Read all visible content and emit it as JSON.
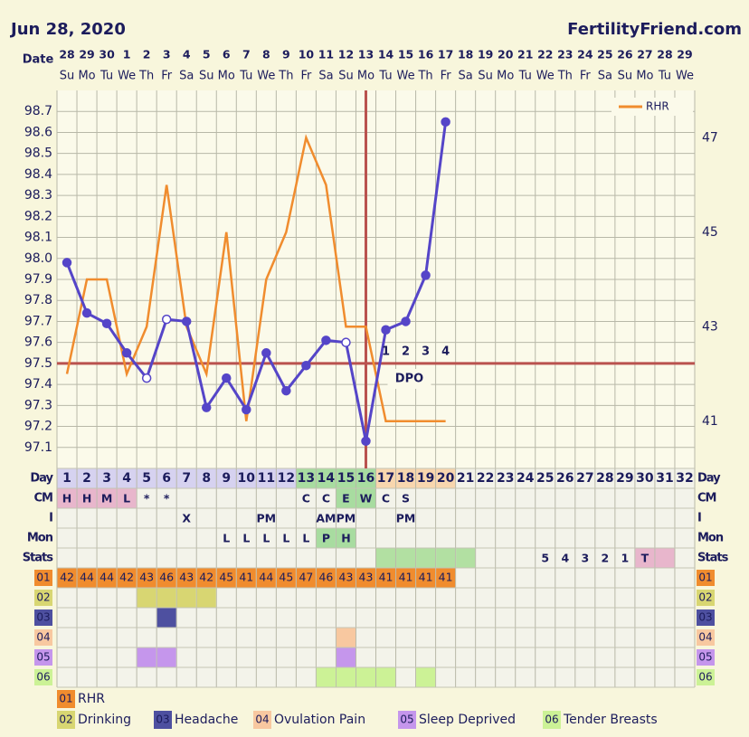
{
  "header": {
    "date": "Jun 28, 2020",
    "site": "FertilityFriend.com"
  },
  "chart_data": {
    "type": "line",
    "x_label": "Date",
    "categories": [
      "1",
      "2",
      "3",
      "4",
      "5",
      "6",
      "7",
      "8",
      "9",
      "10",
      "11",
      "12",
      "13",
      "14",
      "15",
      "16",
      "17",
      "18",
      "19",
      "20",
      "21",
      "22",
      "23",
      "24",
      "25",
      "26",
      "27",
      "28",
      "29",
      "30",
      "31",
      "32"
    ],
    "dates": [
      "28",
      "29",
      "30",
      "1",
      "2",
      "3",
      "4",
      "5",
      "6",
      "7",
      "8",
      "9",
      "10",
      "11",
      "12",
      "13",
      "14",
      "15",
      "16",
      "17",
      "18",
      "19",
      "20",
      "21",
      "22",
      "23",
      "24",
      "25",
      "26",
      "27",
      "28",
      "29"
    ],
    "weekdays": [
      "Su",
      "Mo",
      "Tu",
      "We",
      "Th",
      "Fr",
      "Sa",
      "Su",
      "Mo",
      "Tu",
      "We",
      "Th",
      "Fr",
      "Sa",
      "Su",
      "Mo",
      "Tu",
      "We",
      "Th",
      "Fr",
      "Sa",
      "Su",
      "Mo",
      "Tu",
      "We",
      "Th",
      "Fr",
      "Sa",
      "Su",
      "Mo",
      "Tu",
      "We"
    ],
    "ylim": [
      97.0,
      98.8
    ],
    "yticks": [
      97.1,
      97.2,
      97.3,
      97.4,
      97.5,
      97.6,
      97.7,
      97.8,
      97.9,
      {
        "value": 98,
        "label": "98.0"
      },
      98.1,
      98.2,
      98.3,
      98.4,
      98.5,
      98.6,
      98.7
    ],
    "y2lim": [
      40,
      48
    ],
    "y2ticks": [
      41,
      43,
      45,
      47
    ],
    "grid": true,
    "series": [
      {
        "color": "#5545c8",
        "hollow_points": [
          4,
          5,
          14
        ],
        "values": [
          97.98,
          97.74,
          97.69,
          97.55,
          97.43,
          97.71,
          97.7,
          97.29,
          97.43,
          97.28,
          97.55,
          97.37,
          97.49,
          97.61,
          97.6,
          97.13,
          97.66,
          97.7,
          97.92,
          98.65,
          null,
          null,
          null,
          null,
          null,
          null,
          null,
          null,
          null,
          null,
          null,
          null
        ]
      },
      {
        "name": "RHR",
        "color": "#f08c2e",
        "axis": "y2",
        "values": [
          42,
          44,
          44,
          42,
          43,
          46,
          43,
          42,
          45,
          41,
          44,
          45,
          47,
          46,
          43,
          43,
          41,
          41,
          41,
          41,
          null,
          null,
          null,
          null,
          null,
          null,
          null,
          null,
          null,
          null,
          null,
          null
        ]
      }
    ],
    "coverline": 97.5,
    "ovulation_day": 16,
    "line_color": "#b9524e",
    "dpo_labels": [
      null,
      null,
      null,
      null,
      null,
      null,
      null,
      null,
      null,
      null,
      null,
      null,
      null,
      null,
      null,
      null,
      "1",
      "2",
      "3",
      "4",
      null,
      null,
      null,
      null,
      null,
      null,
      null,
      null,
      null,
      null,
      null,
      null
    ],
    "dpo_text": "DPO"
  },
  "table": {
    "day_label": "Day",
    "day_fills": [
      {
        "from": 1,
        "to": 12,
        "color": "#d6d2f0"
      },
      {
        "from": 13,
        "to": 16,
        "color": "#a8dca0"
      },
      {
        "from": 17,
        "to": 20,
        "color": "#f8d6ae"
      }
    ],
    "rows": [
      {
        "label": "CM",
        "entries": [
          {
            "day": 1,
            "text": "H",
            "fill": "#e8b6cc"
          },
          {
            "day": 2,
            "text": "H",
            "fill": "#e8b6cc"
          },
          {
            "day": 3,
            "text": "M",
            "fill": "#e8b6cc"
          },
          {
            "day": 4,
            "text": "L",
            "fill": "#e8b6cc"
          },
          {
            "day": 5,
            "text": "*"
          },
          {
            "day": 6,
            "text": "*"
          },
          {
            "day": 13,
            "text": "C"
          },
          {
            "day": 14,
            "text": "C"
          },
          {
            "day": 15,
            "text": "E",
            "fill": "#a8dca0"
          },
          {
            "day": 16,
            "text": "W",
            "fill": "#a8dca0"
          },
          {
            "day": 17,
            "text": "C"
          },
          {
            "day": 18,
            "text": "S"
          }
        ]
      },
      {
        "label": "I",
        "entries": [
          {
            "day": 7,
            "text": "X"
          },
          {
            "day": 11,
            "text": "PM"
          },
          {
            "day": 14,
            "text": "AM"
          },
          {
            "day": 15,
            "text": "PM"
          },
          {
            "day": 18,
            "text": "PM"
          }
        ]
      },
      {
        "label": "Mon",
        "entries": [
          {
            "day": 9,
            "text": "L"
          },
          {
            "day": 10,
            "text": "L"
          },
          {
            "day": 11,
            "text": "L"
          },
          {
            "day": 12,
            "text": "L"
          },
          {
            "day": 13,
            "text": "L"
          },
          {
            "day": 14,
            "text": "P",
            "fill": "#a8dca0"
          },
          {
            "day": 15,
            "text": "H",
            "fill": "#a8dca0"
          }
        ]
      },
      {
        "label": "Stats",
        "entries": [
          {
            "day": 17,
            "fill": "#b2e0a2"
          },
          {
            "day": 18,
            "fill": "#b2e0a2"
          },
          {
            "day": 19,
            "fill": "#b2e0a2"
          },
          {
            "day": 20,
            "fill": "#b2e0a2"
          },
          {
            "day": 21,
            "fill": "#b2e0a2"
          },
          {
            "day": 25,
            "text": "5"
          },
          {
            "day": 26,
            "text": "4"
          },
          {
            "day": 27,
            "text": "3"
          },
          {
            "day": 28,
            "text": "2"
          },
          {
            "day": 29,
            "text": "1"
          },
          {
            "day": 30,
            "text": "T",
            "fill": "#e8b6cc"
          },
          {
            "day": 31,
            "fill": "#e8b6cc"
          }
        ]
      }
    ],
    "symptoms": [
      {
        "code": "01",
        "name": "RHR",
        "color": "#f08c2e",
        "text_color": "#222"
      },
      {
        "code": "02",
        "name": "Drinking",
        "color": "#d8d672",
        "text_color": "#222",
        "days": [
          5,
          6,
          7,
          8
        ]
      },
      {
        "code": "03",
        "name": "Headache",
        "color": "#4e50a0",
        "text_color": "#fff",
        "days": [
          6
        ]
      },
      {
        "code": "04",
        "name": "Ovulation Pain",
        "color": "#f8c8a0",
        "text_color": "#222",
        "days": [
          15
        ]
      },
      {
        "code": "05",
        "name": "Sleep Deprived",
        "color": "#c596ec",
        "text_color": "#222",
        "days": [
          5,
          6,
          15
        ]
      },
      {
        "code": "06",
        "name": "Tender Breasts",
        "color": "#ccf296",
        "text_color": "#222",
        "days": [
          14,
          15,
          16,
          17,
          19
        ]
      }
    ]
  }
}
